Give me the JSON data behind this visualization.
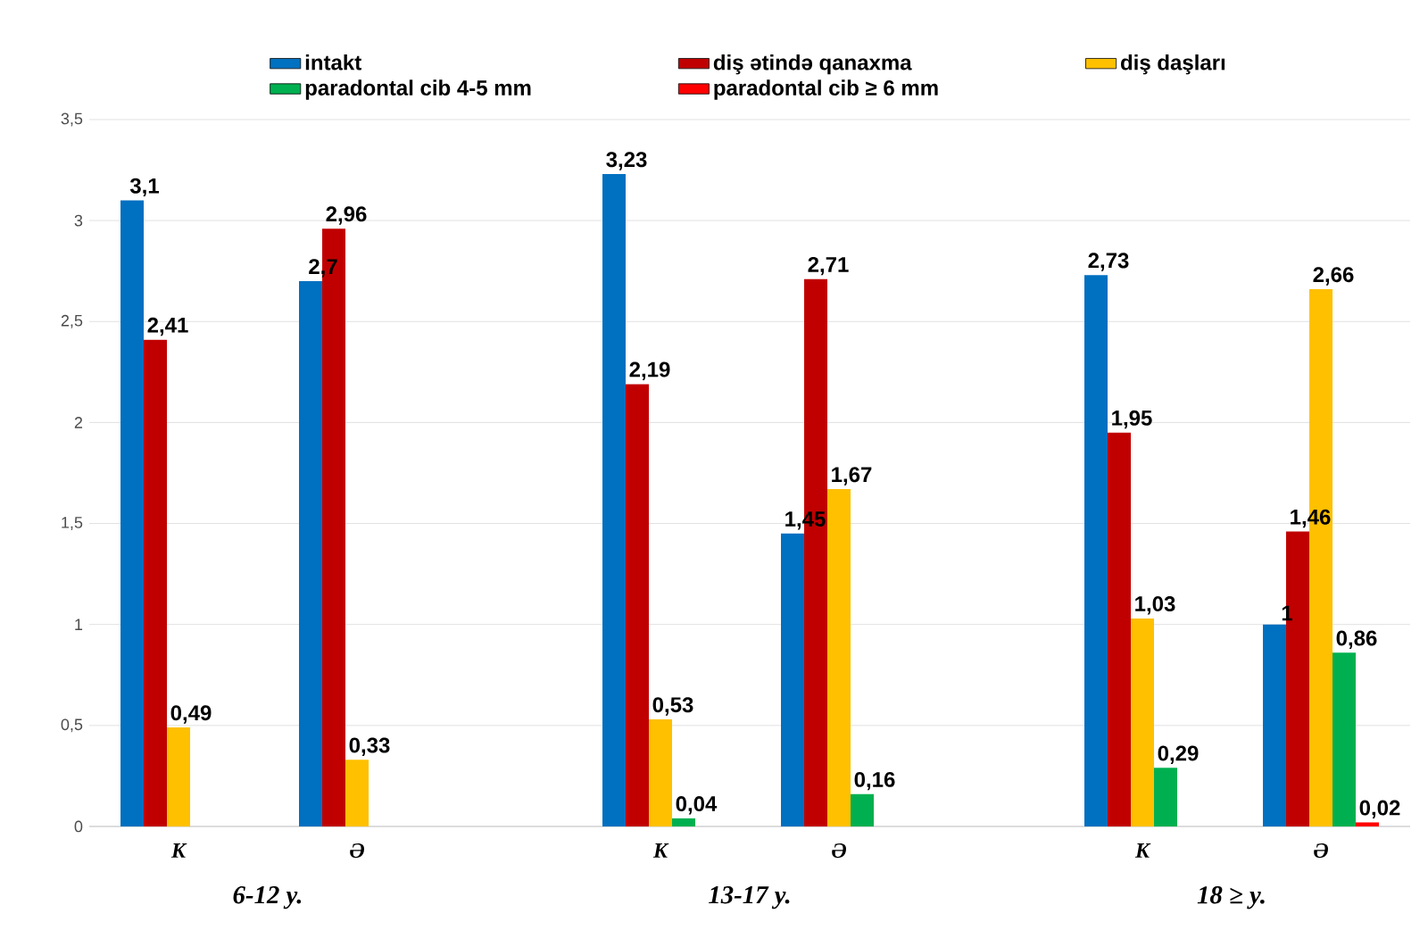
{
  "chart_data": {
    "type": "bar",
    "categories": [
      "K",
      "Ə",
      "K",
      "Ə",
      "K",
      "Ə"
    ],
    "annotations": [
      "6-12 y.",
      "13-17 y.",
      "18 ≥ y."
    ],
    "series": [
      {
        "name": "intakt",
        "color": "#0070c0",
        "values": [
          3.1,
          2.7,
          3.23,
          1.45,
          2.73,
          1
        ],
        "value_labels": [
          "3,1",
          "2,7",
          "3,23",
          "1,45",
          "2,73",
          "1"
        ]
      },
      {
        "name": "diş ətində qanaxma",
        "color": "#c00000",
        "values": [
          2.41,
          2.96,
          2.19,
          2.71,
          1.95,
          1.46
        ],
        "value_labels": [
          "2,41",
          "2,96",
          "2,19",
          "2,71",
          "1,95",
          "1,46"
        ]
      },
      {
        "name": "diş daşları",
        "color": "#ffc000",
        "values": [
          0.49,
          0.33,
          0.53,
          1.67,
          1.03,
          2.66
        ],
        "value_labels": [
          "0,49",
          "0,33",
          "0,53",
          "1,67",
          "1,03",
          "2,66"
        ]
      },
      {
        "name": "paradontal cib 4-5 mm",
        "color": "#00b050",
        "values": [
          null,
          null,
          0.04,
          0.16,
          0.29,
          0.86
        ],
        "value_labels": [
          null,
          null,
          "0,04",
          "0,16",
          "0,29",
          "0,86"
        ]
      },
      {
        "name": "paradontal cib ≥ 6 mm",
        "color": "#ff0000",
        "values": [
          null,
          null,
          null,
          null,
          null,
          0.02
        ],
        "value_labels": [
          null,
          null,
          null,
          null,
          null,
          "0,02"
        ]
      }
    ],
    "ylim": [
      0,
      3.5
    ],
    "yticks": [
      0,
      {
        "value": 0.5,
        "label": "0,5"
      },
      1,
      {
        "value": 1.5,
        "label": "1,5"
      },
      2,
      {
        "value": 2.5,
        "label": "2,5"
      },
      3,
      {
        "value": 3.5,
        "label": "3,5"
      }
    ],
    "grid": "y",
    "legend": "top"
  }
}
